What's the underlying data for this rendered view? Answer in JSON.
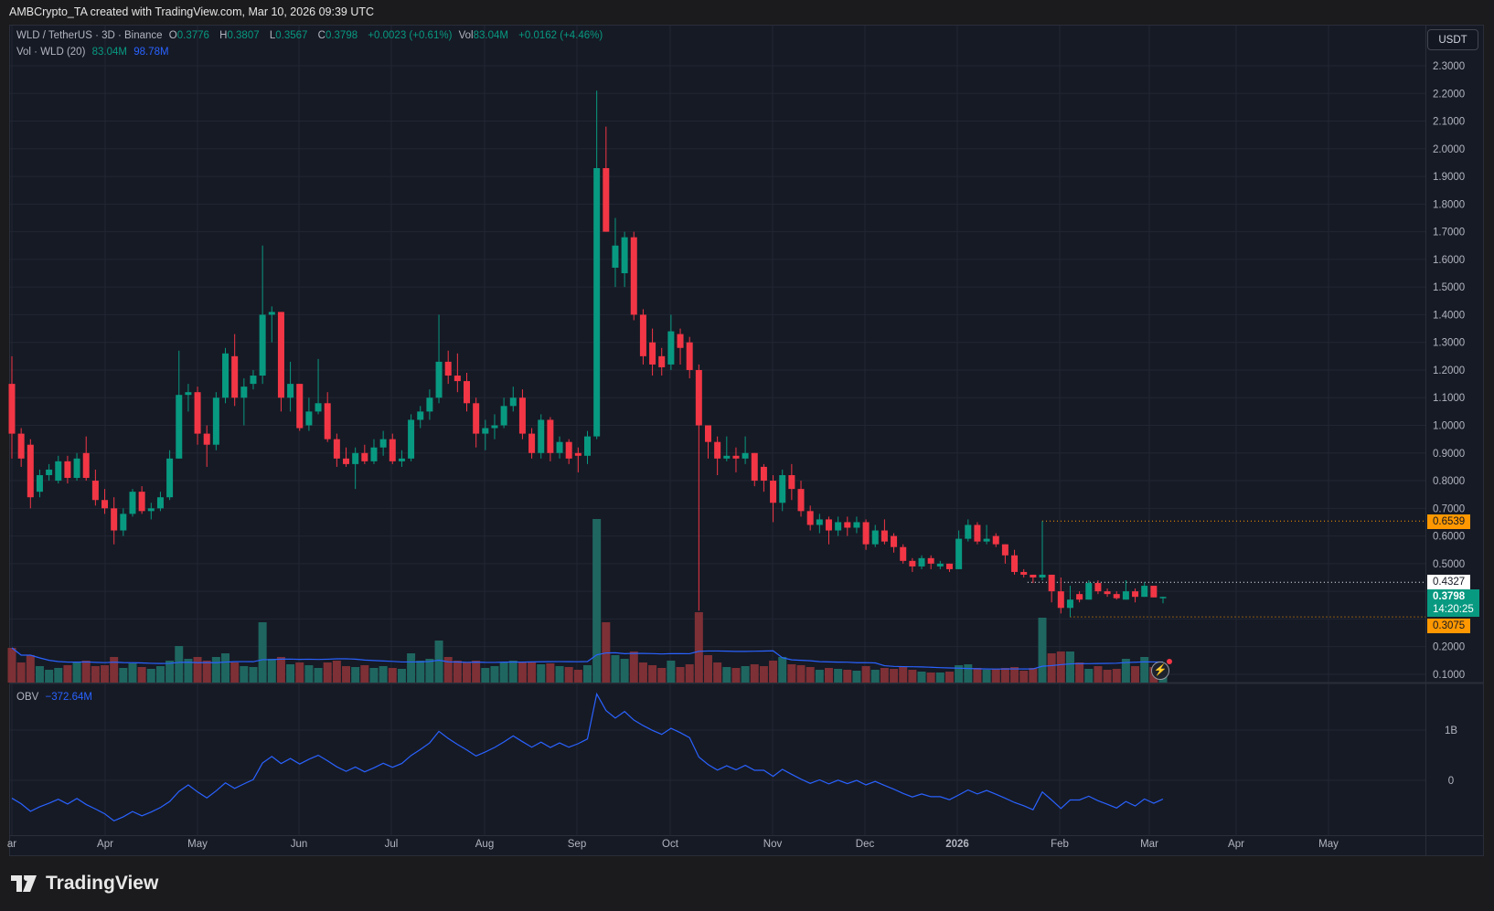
{
  "attribution": "AMBCrypto_TA created with TradingView.com, Mar 10, 2026 09:39 UTC",
  "header": {
    "symbol": "WLD / TetherUS · 3D · Binance",
    "o_label": "O",
    "o": "0.3776",
    "h_label": "H",
    "h": "0.3807",
    "l_label": "L",
    "l": "0.3567",
    "c_label": "C",
    "c": "0.3798",
    "change": "+0.0023 (+0.61%)",
    "vol_label": "Vol",
    "vol": "83.04M",
    "vol_change": "+0.0162 (+4.46%)"
  },
  "volume_legend": {
    "label": "Vol · WLD (20)",
    "value": "83.04M",
    "ma": "98.78M"
  },
  "obv_legend": {
    "label": "OBV",
    "value": "−372.64M"
  },
  "currency_button": "USDT",
  "brand": "TradingView",
  "colors": {
    "up": "#089981",
    "down": "#f23645",
    "vol_up": "#1f6660",
    "vol_down": "#7d3035",
    "ma": "#2962ff",
    "obv": "#2962ff",
    "marker": "#ff9800",
    "background": "#161a25",
    "grid": "#222633"
  },
  "price_labels": {
    "high_marker": "0.6539",
    "level_marker": "0.4327",
    "last_price": "0.3798",
    "countdown": "14:20:25",
    "low_marker": "0.3075"
  },
  "chart_data": [
    {
      "type": "candlestick",
      "interval": "3D",
      "y_axis": {
        "min": 0.1,
        "max": 2.3,
        "ticks": [
          "2.3000",
          "2.2000",
          "2.1000",
          "2.0000",
          "1.9000",
          "1.8000",
          "1.7000",
          "1.6000",
          "1.5000",
          "1.4000",
          "1.3000",
          "1.2000",
          "1.1000",
          "1.0000",
          "0.9000",
          "0.8000",
          "0.7000",
          "0.6000",
          "0.5000",
          "0.4000",
          "0.3000",
          "0.2000",
          "0.1000"
        ],
        "hidden_ticks": [
          "0.4000",
          "0.3000"
        ]
      },
      "x_axis": {
        "ticks": [
          "ar",
          "Apr",
          "May",
          "Jun",
          "Jul",
          "Aug",
          "Sep",
          "Oct",
          "Nov",
          "Dec",
          "2026",
          "Feb",
          "Mar",
          "Apr",
          "May"
        ]
      },
      "grid": true,
      "columns": [
        "open",
        "high",
        "low",
        "close",
        "volume_M"
      ],
      "candles": [
        [
          1.15,
          1.25,
          0.88,
          0.97,
          190
        ],
        [
          0.97,
          0.99,
          0.85,
          0.88,
          110
        ],
        [
          0.93,
          0.95,
          0.7,
          0.74,
          150
        ],
        [
          0.76,
          0.84,
          0.74,
          0.82,
          90
        ],
        [
          0.82,
          0.86,
          0.8,
          0.84,
          70
        ],
        [
          0.8,
          0.89,
          0.79,
          0.87,
          80
        ],
        [
          0.87,
          0.89,
          0.79,
          0.81,
          95
        ],
        [
          0.81,
          0.9,
          0.8,
          0.88,
          110
        ],
        [
          0.9,
          0.96,
          0.8,
          0.81,
          120
        ],
        [
          0.8,
          0.84,
          0.71,
          0.73,
          90
        ],
        [
          0.73,
          0.77,
          0.68,
          0.7,
          95
        ],
        [
          0.7,
          0.74,
          0.57,
          0.62,
          140
        ],
        [
          0.62,
          0.7,
          0.6,
          0.68,
          80
        ],
        [
          0.68,
          0.77,
          0.67,
          0.76,
          105
        ],
        [
          0.76,
          0.78,
          0.68,
          0.69,
          85
        ],
        [
          0.69,
          0.72,
          0.66,
          0.7,
          75
        ],
        [
          0.7,
          0.76,
          0.69,
          0.74,
          90
        ],
        [
          0.74,
          0.91,
          0.73,
          0.88,
          120
        ],
        [
          0.88,
          1.27,
          0.88,
          1.11,
          200
        ],
        [
          1.11,
          1.15,
          1.05,
          1.12,
          130
        ],
        [
          1.12,
          1.14,
          0.93,
          0.97,
          140
        ],
        [
          0.97,
          1.0,
          0.85,
          0.93,
          120
        ],
        [
          0.93,
          1.12,
          0.91,
          1.1,
          140
        ],
        [
          1.1,
          1.28,
          1.08,
          1.26,
          160
        ],
        [
          1.25,
          1.33,
          1.07,
          1.1,
          110
        ],
        [
          1.1,
          1.17,
          1.0,
          1.14,
          90
        ],
        [
          1.15,
          1.2,
          1.13,
          1.18,
          85
        ],
        [
          1.18,
          1.65,
          1.15,
          1.4,
          330
        ],
        [
          1.4,
          1.43,
          1.3,
          1.41,
          130
        ],
        [
          1.41,
          1.41,
          1.05,
          1.1,
          140
        ],
        [
          1.1,
          1.23,
          1.05,
          1.15,
          100
        ],
        [
          1.15,
          1.15,
          0.98,
          0.99,
          110
        ],
        [
          1.0,
          1.1,
          0.98,
          1.05,
          95
        ],
        [
          1.05,
          1.24,
          1.04,
          1.08,
          80
        ],
        [
          1.08,
          1.12,
          0.94,
          0.95,
          110
        ],
        [
          0.95,
          0.97,
          0.85,
          0.88,
          120
        ],
        [
          0.88,
          0.92,
          0.85,
          0.86,
          90
        ],
        [
          0.86,
          0.92,
          0.77,
          0.9,
          85
        ],
        [
          0.9,
          0.93,
          0.86,
          0.87,
          95
        ],
        [
          0.87,
          0.95,
          0.86,
          0.92,
          80
        ],
        [
          0.92,
          0.98,
          0.89,
          0.95,
          90
        ],
        [
          0.95,
          0.97,
          0.86,
          0.87,
          80
        ],
        [
          0.87,
          0.91,
          0.85,
          0.88,
          75
        ],
        [
          0.88,
          1.04,
          0.87,
          1.02,
          160
        ],
        [
          1.02,
          1.07,
          0.99,
          1.05,
          120
        ],
        [
          1.05,
          1.13,
          1.02,
          1.1,
          130
        ],
        [
          1.1,
          1.4,
          1.08,
          1.23,
          230
        ],
        [
          1.23,
          1.27,
          1.15,
          1.18,
          140
        ],
        [
          1.18,
          1.26,
          1.12,
          1.16,
          120
        ],
        [
          1.16,
          1.19,
          1.05,
          1.08,
          110
        ],
        [
          1.08,
          1.1,
          0.92,
          0.97,
          120
        ],
        [
          0.97,
          1.02,
          0.91,
          0.99,
          80
        ],
        [
          0.99,
          1.04,
          0.95,
          1.0,
          90
        ],
        [
          1.0,
          1.1,
          0.99,
          1.07,
          110
        ],
        [
          1.07,
          1.14,
          1.05,
          1.1,
          120
        ],
        [
          1.1,
          1.13,
          0.95,
          0.97,
          115
        ],
        [
          0.97,
          0.99,
          0.88,
          0.9,
          110
        ],
        [
          0.9,
          1.04,
          0.88,
          1.02,
          100
        ],
        [
          1.02,
          1.03,
          0.87,
          0.9,
          105
        ],
        [
          0.9,
          0.96,
          0.88,
          0.94,
          90
        ],
        [
          0.94,
          0.95,
          0.86,
          0.88,
          85
        ],
        [
          0.9,
          0.92,
          0.83,
          0.89,
          70
        ],
        [
          0.89,
          0.98,
          0.86,
          0.96,
          95
        ],
        [
          0.96,
          2.21,
          0.95,
          1.93,
          895
        ],
        [
          1.93,
          2.08,
          1.7,
          1.7,
          330
        ],
        [
          1.57,
          1.75,
          1.5,
          1.65,
          150
        ],
        [
          1.55,
          1.7,
          1.5,
          1.68,
          130
        ],
        [
          1.68,
          1.7,
          1.38,
          1.4,
          170
        ],
        [
          1.4,
          1.42,
          1.22,
          1.25,
          110
        ],
        [
          1.3,
          1.35,
          1.18,
          1.22,
          95
        ],
        [
          1.25,
          1.28,
          1.18,
          1.21,
          80
        ],
        [
          1.22,
          1.4,
          1.2,
          1.34,
          120
        ],
        [
          1.33,
          1.35,
          1.22,
          1.28,
          85
        ],
        [
          1.3,
          1.32,
          1.17,
          1.2,
          100
        ],
        [
          1.2,
          1.22,
          0.33,
          1.0,
          385
        ],
        [
          1.0,
          1.0,
          0.88,
          0.94,
          150
        ],
        [
          0.94,
          0.96,
          0.82,
          0.88,
          110
        ],
        [
          0.88,
          0.96,
          0.87,
          0.89,
          85
        ],
        [
          0.89,
          0.92,
          0.83,
          0.88,
          80
        ],
        [
          0.88,
          0.96,
          0.86,
          0.9,
          90
        ],
        [
          0.9,
          0.9,
          0.78,
          0.8,
          100
        ],
        [
          0.85,
          0.86,
          0.76,
          0.8,
          90
        ],
        [
          0.8,
          0.82,
          0.65,
          0.72,
          120
        ],
        [
          0.72,
          0.84,
          0.69,
          0.82,
          140
        ],
        [
          0.82,
          0.86,
          0.73,
          0.77,
          100
        ],
        [
          0.77,
          0.8,
          0.67,
          0.69,
          95
        ],
        [
          0.69,
          0.71,
          0.62,
          0.64,
          85
        ],
        [
          0.64,
          0.68,
          0.61,
          0.66,
          70
        ],
        [
          0.66,
          0.67,
          0.57,
          0.62,
          80
        ],
        [
          0.62,
          0.67,
          0.6,
          0.65,
          75
        ],
        [
          0.65,
          0.67,
          0.6,
          0.63,
          70
        ],
        [
          0.63,
          0.67,
          0.61,
          0.65,
          65
        ],
        [
          0.65,
          0.66,
          0.55,
          0.57,
          90
        ],
        [
          0.57,
          0.64,
          0.56,
          0.62,
          70
        ],
        [
          0.62,
          0.66,
          0.57,
          0.58,
          80
        ],
        [
          0.6,
          0.61,
          0.54,
          0.56,
          75
        ],
        [
          0.56,
          0.57,
          0.5,
          0.51,
          85
        ],
        [
          0.51,
          0.52,
          0.47,
          0.49,
          70
        ],
        [
          0.49,
          0.53,
          0.48,
          0.52,
          60
        ],
        [
          0.52,
          0.53,
          0.48,
          0.5,
          55
        ],
        [
          0.49,
          0.51,
          0.48,
          0.5,
          55
        ],
        [
          0.5,
          0.5,
          0.47,
          0.48,
          60
        ],
        [
          0.48,
          0.62,
          0.48,
          0.59,
          95
        ],
        [
          0.59,
          0.66,
          0.58,
          0.64,
          100
        ],
        [
          0.64,
          0.65,
          0.57,
          0.58,
          80
        ],
        [
          0.58,
          0.64,
          0.57,
          0.59,
          70
        ],
        [
          0.6,
          0.61,
          0.56,
          0.57,
          75
        ],
        [
          0.57,
          0.57,
          0.5,
          0.53,
          80
        ],
        [
          0.53,
          0.55,
          0.46,
          0.47,
          85
        ],
        [
          0.47,
          0.48,
          0.45,
          0.46,
          65
        ],
        [
          0.46,
          0.46,
          0.43,
          0.45,
          80
        ],
        [
          0.45,
          0.6539,
          0.44,
          0.46,
          355
        ],
        [
          0.46,
          0.46,
          0.36,
          0.4,
          160
        ],
        [
          0.4,
          0.45,
          0.32,
          0.34,
          170
        ],
        [
          0.34,
          0.42,
          0.3075,
          0.37,
          170
        ],
        [
          0.39,
          0.4,
          0.36,
          0.37,
          110
        ],
        [
          0.37,
          0.44,
          0.37,
          0.43,
          75
        ],
        [
          0.43,
          0.44,
          0.39,
          0.4,
          90
        ],
        [
          0.4,
          0.41,
          0.38,
          0.39,
          70
        ],
        [
          0.39,
          0.4,
          0.37,
          0.375,
          75
        ],
        [
          0.37,
          0.44,
          0.37,
          0.4,
          130
        ],
        [
          0.4,
          0.41,
          0.36,
          0.38,
          90
        ],
        [
          0.38,
          0.4327,
          0.38,
          0.42,
          140
        ],
        [
          0.42,
          0.42,
          0.378,
          0.378,
          85
        ],
        [
          0.3776,
          0.3807,
          0.3567,
          0.3798,
          83.04
        ]
      ],
      "volume_ma_period": 20,
      "levels": {
        "high": 0.6539,
        "mid": 0.4327,
        "low": 0.3075,
        "last": 0.3798
      }
    },
    {
      "type": "line",
      "name": "OBV",
      "last_value_M": -372.64,
      "y_axis": {
        "ticks": [
          "1B",
          "0"
        ]
      }
    }
  ]
}
